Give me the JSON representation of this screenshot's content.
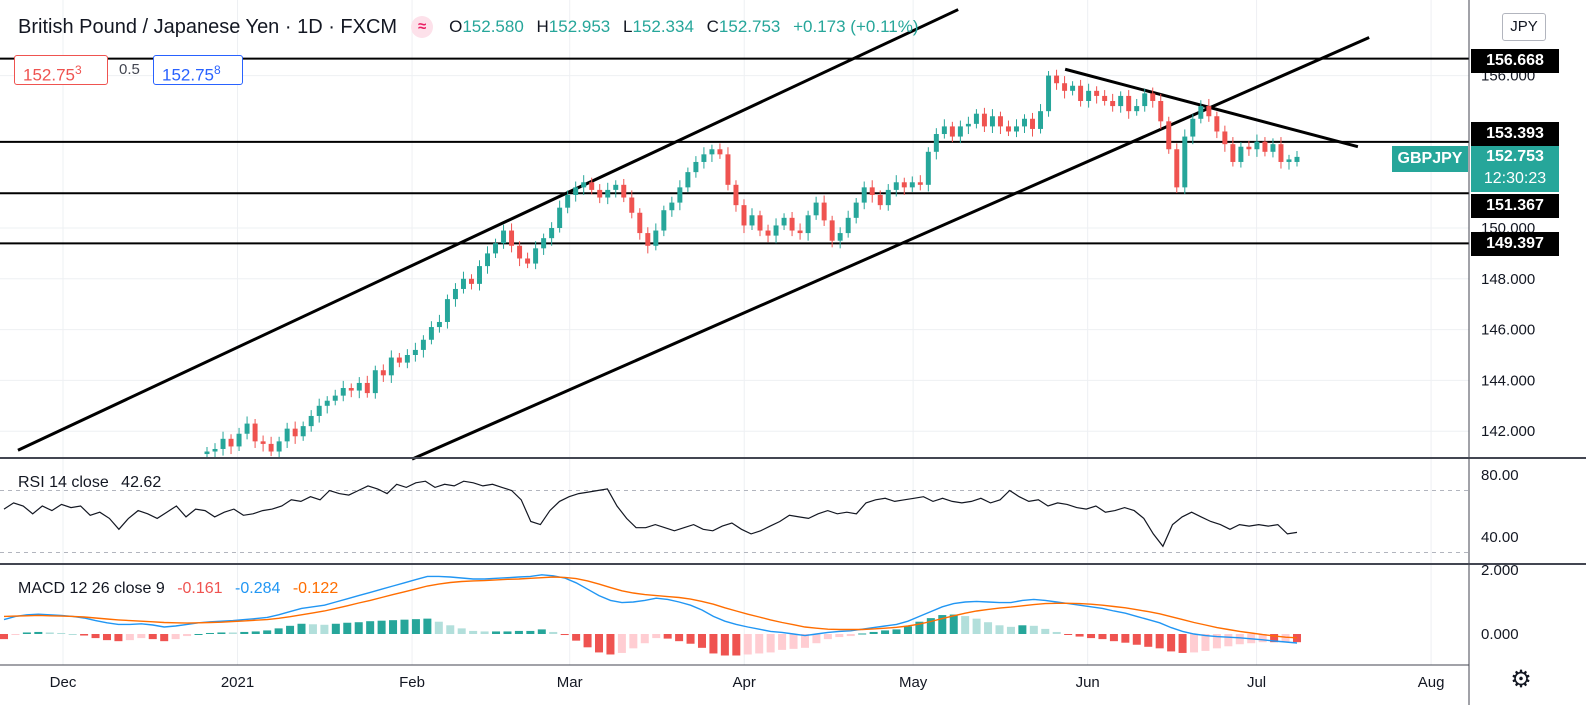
{
  "header": {
    "symbol_title": "British Pound / Japanese Yen · 1D · FXCM",
    "ohlc": {
      "o_key": "O",
      "o_val": "152.580",
      "h_key": "H",
      "h_val": "152.953",
      "l_key": "L",
      "l_val": "152.334",
      "c_key": "C",
      "c_val": "152.753",
      "change": "+0.173 (+0.11%)"
    },
    "sell_price": "152.75",
    "sell_frac": "3",
    "spread": "0.5",
    "buy_price": "152.75",
    "buy_frac": "8",
    "currency": "JPY"
  },
  "last_price": {
    "symbol": "GBPJPY",
    "price": "152.753",
    "countdown": "12:30:23"
  },
  "colors": {
    "up": "#26a69a",
    "down": "#ef5350",
    "rsi_line": "#131722",
    "macd_line": "#2196f3",
    "signal_line": "#ff6d00",
    "hist_pos_strong": "#26a69a",
    "hist_pos_weak": "#b2dfdb",
    "hist_neg_strong": "#ef5350",
    "hist_neg_weak": "#ffcdd2"
  },
  "rsi_label": {
    "name": "RSI 14 close",
    "value": "42.62"
  },
  "macd_label": {
    "name": "MACD 12 26 close 9",
    "hist": "-0.161",
    "macd": "-0.284",
    "signal": "-0.122"
  },
  "settings_icon": "gear-icon",
  "chart_data": {
    "type": "candlestick",
    "timeframe": "1D",
    "x_tick_labels": [
      "Dec",
      "2021",
      "Feb",
      "Mar",
      "Apr",
      "May",
      "Jun",
      "Jul",
      "Aug"
    ],
    "y_tick_labels": [
      "142.000",
      "144.000",
      "146.000",
      "148.000",
      "150.000",
      "156.000"
    ],
    "y_range": [
      140.9,
      158.3
    ],
    "horizontal_levels": [
      {
        "value": 156.668,
        "label": "156.668"
      },
      {
        "value": 153.393,
        "label": "153.393"
      },
      {
        "value": 151.367,
        "label": "151.367"
      },
      {
        "value": 149.397,
        "label": "149.397"
      }
    ],
    "trendlines": [
      {
        "name": "channel-upper",
        "from": [
          "2020-11-23",
          141.25
        ],
        "to": [
          "2021-05-09",
          158.6
        ]
      },
      {
        "name": "channel-lower",
        "from": [
          "2021-02-01",
          140.9
        ],
        "to": [
          "2021-07-21",
          157.5
        ]
      },
      {
        "name": "descending-resistance",
        "from": [
          "2021-05-28",
          156.25
        ],
        "to": [
          "2021-07-19",
          153.2
        ]
      }
    ],
    "candles_open_close": [
      [
        141.1,
        141.2
      ],
      [
        141.2,
        141.3
      ],
      [
        141.3,
        141.7
      ],
      [
        141.7,
        141.4
      ],
      [
        141.4,
        141.9
      ],
      [
        141.9,
        142.3
      ],
      [
        142.3,
        141.6
      ],
      [
        141.6,
        141.5
      ],
      [
        141.5,
        141.2
      ],
      [
        141.2,
        141.6
      ],
      [
        141.6,
        142.1
      ],
      [
        142.1,
        141.8
      ],
      [
        141.8,
        142.2
      ],
      [
        142.2,
        142.6
      ],
      [
        142.6,
        143.0
      ],
      [
        143.0,
        143.2
      ],
      [
        143.2,
        143.4
      ],
      [
        143.4,
        143.7
      ],
      [
        143.7,
        143.6
      ],
      [
        143.6,
        143.9
      ],
      [
        143.9,
        143.5
      ],
      [
        143.5,
        144.4
      ],
      [
        144.4,
        144.2
      ],
      [
        144.2,
        144.9
      ],
      [
        144.9,
        144.7
      ],
      [
        144.7,
        145.0
      ],
      [
        145.0,
        145.2
      ],
      [
        145.2,
        145.6
      ],
      [
        145.6,
        146.1
      ],
      [
        146.1,
        146.3
      ],
      [
        146.3,
        147.2
      ],
      [
        147.2,
        147.6
      ],
      [
        147.6,
        148.0
      ],
      [
        148.0,
        147.8
      ],
      [
        147.8,
        148.5
      ],
      [
        148.5,
        149.0
      ],
      [
        149.0,
        149.4
      ],
      [
        149.4,
        149.9
      ],
      [
        149.9,
        149.3
      ],
      [
        149.3,
        148.8
      ],
      [
        148.8,
        148.6
      ],
      [
        148.6,
        149.2
      ],
      [
        149.2,
        149.6
      ],
      [
        149.6,
        150.0
      ],
      [
        150.0,
        150.8
      ],
      [
        150.8,
        151.3
      ],
      [
        151.3,
        151.6
      ],
      [
        151.6,
        151.8
      ],
      [
        151.8,
        151.5
      ],
      [
        151.5,
        151.2
      ],
      [
        151.2,
        151.5
      ],
      [
        151.5,
        151.7
      ],
      [
        151.7,
        151.2
      ],
      [
        151.2,
        150.6
      ],
      [
        150.6,
        149.8
      ],
      [
        149.8,
        149.3
      ],
      [
        149.3,
        149.9
      ],
      [
        149.9,
        150.7
      ],
      [
        150.7,
        151.0
      ],
      [
        151.0,
        151.6
      ],
      [
        151.6,
        152.2
      ],
      [
        152.2,
        152.6
      ],
      [
        152.6,
        152.9
      ],
      [
        152.9,
        153.1
      ],
      [
        153.1,
        152.9
      ],
      [
        152.9,
        151.7
      ],
      [
        151.7,
        150.9
      ],
      [
        150.9,
        150.1
      ],
      [
        150.1,
        150.5
      ],
      [
        150.5,
        149.9
      ],
      [
        149.9,
        149.7
      ],
      [
        149.7,
        150.1
      ],
      [
        150.1,
        150.4
      ],
      [
        150.4,
        149.9
      ],
      [
        149.9,
        149.8
      ],
      [
        149.8,
        150.5
      ],
      [
        150.5,
        151.0
      ],
      [
        151.0,
        150.3
      ],
      [
        150.3,
        149.5
      ],
      [
        149.5,
        149.8
      ],
      [
        149.8,
        150.4
      ],
      [
        150.4,
        151.0
      ],
      [
        151.0,
        151.6
      ],
      [
        151.6,
        151.3
      ],
      [
        151.3,
        150.9
      ],
      [
        150.9,
        151.5
      ],
      [
        151.5,
        151.8
      ],
      [
        151.8,
        151.6
      ],
      [
        151.6,
        151.8
      ],
      [
        151.8,
        151.7
      ],
      [
        151.7,
        153.0
      ],
      [
        153.0,
        153.7
      ],
      [
        153.7,
        154.0
      ],
      [
        154.0,
        153.6
      ],
      [
        153.6,
        154.0
      ],
      [
        154.0,
        154.1
      ],
      [
        154.1,
        154.5
      ],
      [
        154.5,
        154.0
      ],
      [
        154.0,
        154.4
      ],
      [
        154.4,
        154.0
      ],
      [
        154.0,
        153.8
      ],
      [
        153.8,
        154.0
      ],
      [
        154.0,
        154.3
      ],
      [
        154.3,
        153.9
      ],
      [
        153.9,
        154.6
      ],
      [
        154.6,
        156.0
      ],
      [
        156.0,
        155.7
      ],
      [
        155.7,
        155.4
      ],
      [
        155.4,
        155.6
      ],
      [
        155.6,
        155.0
      ],
      [
        155.0,
        155.4
      ],
      [
        155.4,
        155.2
      ],
      [
        155.2,
        155.0
      ],
      [
        155.0,
        154.8
      ],
      [
        154.8,
        155.2
      ],
      [
        155.2,
        154.6
      ],
      [
        154.6,
        154.8
      ],
      [
        154.8,
        155.3
      ],
      [
        155.3,
        155.0
      ],
      [
        155.0,
        154.2
      ],
      [
        154.2,
        153.1
      ],
      [
        153.1,
        151.6
      ],
      [
        151.6,
        153.6
      ],
      [
        153.6,
        154.3
      ],
      [
        154.3,
        154.8
      ],
      [
        154.8,
        154.4
      ],
      [
        154.4,
        153.8
      ],
      [
        153.8,
        153.3
      ],
      [
        153.3,
        152.6
      ],
      [
        152.6,
        153.2
      ],
      [
        153.2,
        153.1
      ],
      [
        153.1,
        153.4
      ],
      [
        153.4,
        153.0
      ],
      [
        153.0,
        153.3
      ],
      [
        153.3,
        152.6
      ],
      [
        152.6,
        152.7
      ],
      [
        152.6,
        152.8
      ]
    ],
    "rsi": {
      "label": "RSI 14 close",
      "last": 42.62,
      "y_tick_labels": [
        "80.00",
        "40.00"
      ],
      "bands": [
        70,
        30
      ],
      "values": [
        58,
        62,
        60,
        55,
        60,
        57,
        61,
        59,
        60,
        54,
        56,
        52,
        45,
        52,
        57,
        55,
        52,
        56,
        60,
        53,
        58,
        57,
        53,
        56,
        58,
        54,
        55,
        57,
        58,
        60,
        64,
        63,
        66,
        64,
        70,
        68,
        67,
        70,
        73,
        71,
        68,
        74,
        72,
        75,
        76,
        72,
        74,
        73,
        76,
        75,
        73,
        74,
        72,
        70,
        64,
        50,
        48,
        57,
        63,
        66,
        68,
        69,
        70,
        71,
        60,
        52,
        46,
        46,
        48,
        46,
        44,
        46,
        48,
        45,
        44,
        47,
        49,
        45,
        42,
        44,
        47,
        50,
        54,
        53,
        52,
        55,
        57,
        55,
        56,
        55,
        62,
        64,
        65,
        63,
        64,
        65,
        66,
        63,
        65,
        63,
        62,
        63,
        65,
        62,
        64,
        70,
        66,
        63,
        64,
        60,
        62,
        61,
        59,
        58,
        60,
        56,
        57,
        59,
        57,
        52,
        42,
        34,
        48,
        53,
        56,
        53,
        50,
        48,
        45,
        48,
        47,
        48,
        47,
        48,
        42,
        43
      ]
    },
    "macd": {
      "label": "MACD 12 26 close 9",
      "y_tick_labels": [
        "2.000",
        "0.000"
      ],
      "hist_last": -0.161,
      "macd_last": -0.284,
      "signal_last": -0.122,
      "macd_values": [
        0.45,
        0.55,
        0.6,
        0.62,
        0.6,
        0.58,
        0.55,
        0.5,
        0.42,
        0.35,
        0.3,
        0.3,
        0.32,
        0.28,
        0.22,
        0.25,
        0.3,
        0.35,
        0.38,
        0.4,
        0.42,
        0.45,
        0.48,
        0.52,
        0.6,
        0.7,
        0.8,
        0.85,
        0.9,
        1.0,
        1.1,
        1.2,
        1.3,
        1.4,
        1.5,
        1.6,
        1.7,
        1.8,
        1.8,
        1.78,
        1.75,
        1.72,
        1.72,
        1.74,
        1.76,
        1.78,
        1.8,
        1.85,
        1.82,
        1.75,
        1.6,
        1.4,
        1.2,
        1.05,
        0.98,
        1.0,
        1.05,
        1.12,
        1.08,
        1.0,
        0.9,
        0.75,
        0.55,
        0.4,
        0.3,
        0.22,
        0.15,
        0.08,
        0.05,
        0.0,
        -0.05,
        0.0,
        0.05,
        0.08,
        0.1,
        0.15,
        0.2,
        0.25,
        0.3,
        0.4,
        0.55,
        0.7,
        0.85,
        0.95,
        1.0,
        1.02,
        1.0,
        0.98,
        0.98,
        1.05,
        1.08,
        1.05,
        1.0,
        0.95,
        0.9,
        0.85,
        0.8,
        0.72,
        0.65,
        0.55,
        0.45,
        0.35,
        0.2,
        0.08,
        0.0,
        -0.05,
        -0.08,
        -0.1,
        -0.12,
        -0.15,
        -0.18,
        -0.22,
        -0.25,
        -0.28
      ],
      "signal_values": [
        0.55,
        0.56,
        0.57,
        0.58,
        0.57,
        0.56,
        0.55,
        0.53,
        0.5,
        0.47,
        0.44,
        0.42,
        0.4,
        0.38,
        0.36,
        0.35,
        0.34,
        0.35,
        0.36,
        0.37,
        0.39,
        0.41,
        0.43,
        0.45,
        0.49,
        0.54,
        0.6,
        0.66,
        0.72,
        0.8,
        0.88,
        0.97,
        1.05,
        1.14,
        1.23,
        1.32,
        1.41,
        1.5,
        1.56,
        1.61,
        1.64,
        1.66,
        1.67,
        1.69,
        1.71,
        1.72,
        1.74,
        1.76,
        1.78,
        1.77,
        1.73,
        1.66,
        1.56,
        1.45,
        1.35,
        1.28,
        1.23,
        1.2,
        1.17,
        1.14,
        1.09,
        1.02,
        0.93,
        0.82,
        0.72,
        0.62,
        0.53,
        0.44,
        0.36,
        0.29,
        0.22,
        0.18,
        0.15,
        0.14,
        0.14,
        0.14,
        0.16,
        0.18,
        0.21,
        0.25,
        0.31,
        0.39,
        0.48,
        0.57,
        0.65,
        0.72,
        0.77,
        0.81,
        0.84,
        0.88,
        0.92,
        0.95,
        0.96,
        0.96,
        0.95,
        0.93,
        0.9,
        0.86,
        0.82,
        0.76,
        0.7,
        0.63,
        0.54,
        0.45,
        0.36,
        0.28,
        0.2,
        0.14,
        0.08,
        0.03,
        -0.02,
        -0.06,
        -0.1,
        -0.12
      ]
    }
  }
}
